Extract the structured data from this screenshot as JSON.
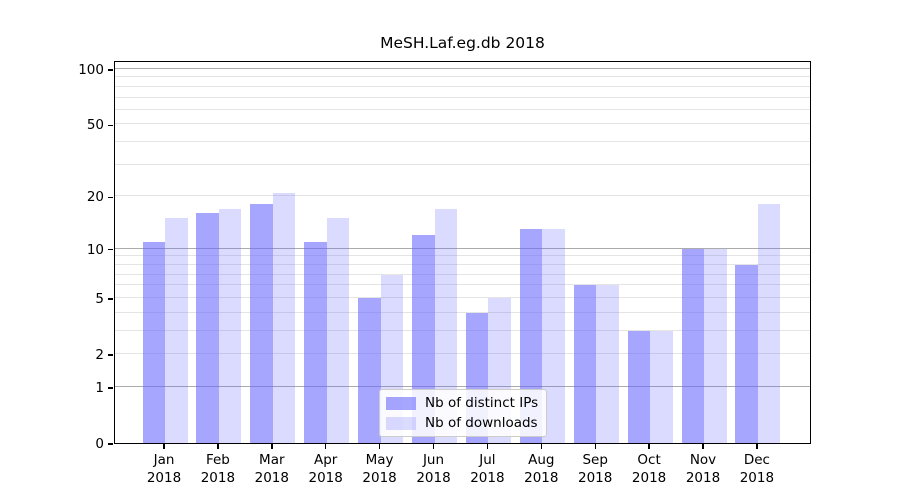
{
  "chart_data": {
    "type": "bar",
    "title": "MeSH.Laf.eg.db 2018",
    "year": "2018",
    "categories": [
      "Jan",
      "Feb",
      "Mar",
      "Apr",
      "May",
      "Jun",
      "Jul",
      "Aug",
      "Sep",
      "Oct",
      "Nov",
      "Dec"
    ],
    "series": [
      {
        "name": "Nb of distinct IPs",
        "color": "rgba(102,102,255,0.58)",
        "values": [
          11,
          16,
          18,
          11,
          5,
          12,
          4,
          13,
          6,
          3,
          10,
          8
        ]
      },
      {
        "name": "Nb of downloads",
        "color": "rgba(102,102,255,0.235)",
        "values": [
          15,
          17,
          21,
          15,
          7,
          17,
          5,
          13,
          6,
          3,
          10,
          18
        ]
      }
    ],
    "yscale": "log1p",
    "ylim": [
      0,
      112
    ],
    "yticks": [
      0,
      1,
      2,
      5,
      10,
      20,
      50,
      100
    ],
    "minor_yticks": [
      3,
      4,
      6,
      7,
      8,
      9,
      30,
      40,
      60,
      70,
      80,
      90
    ],
    "major_decades": [
      1,
      10,
      100
    ],
    "grid": true,
    "legend_position": "lower center",
    "colors": {
      "grid_major": "#ababab",
      "grid_minor": "#e4e4e4",
      "spine": "#000000",
      "background": "#ffffff"
    }
  }
}
